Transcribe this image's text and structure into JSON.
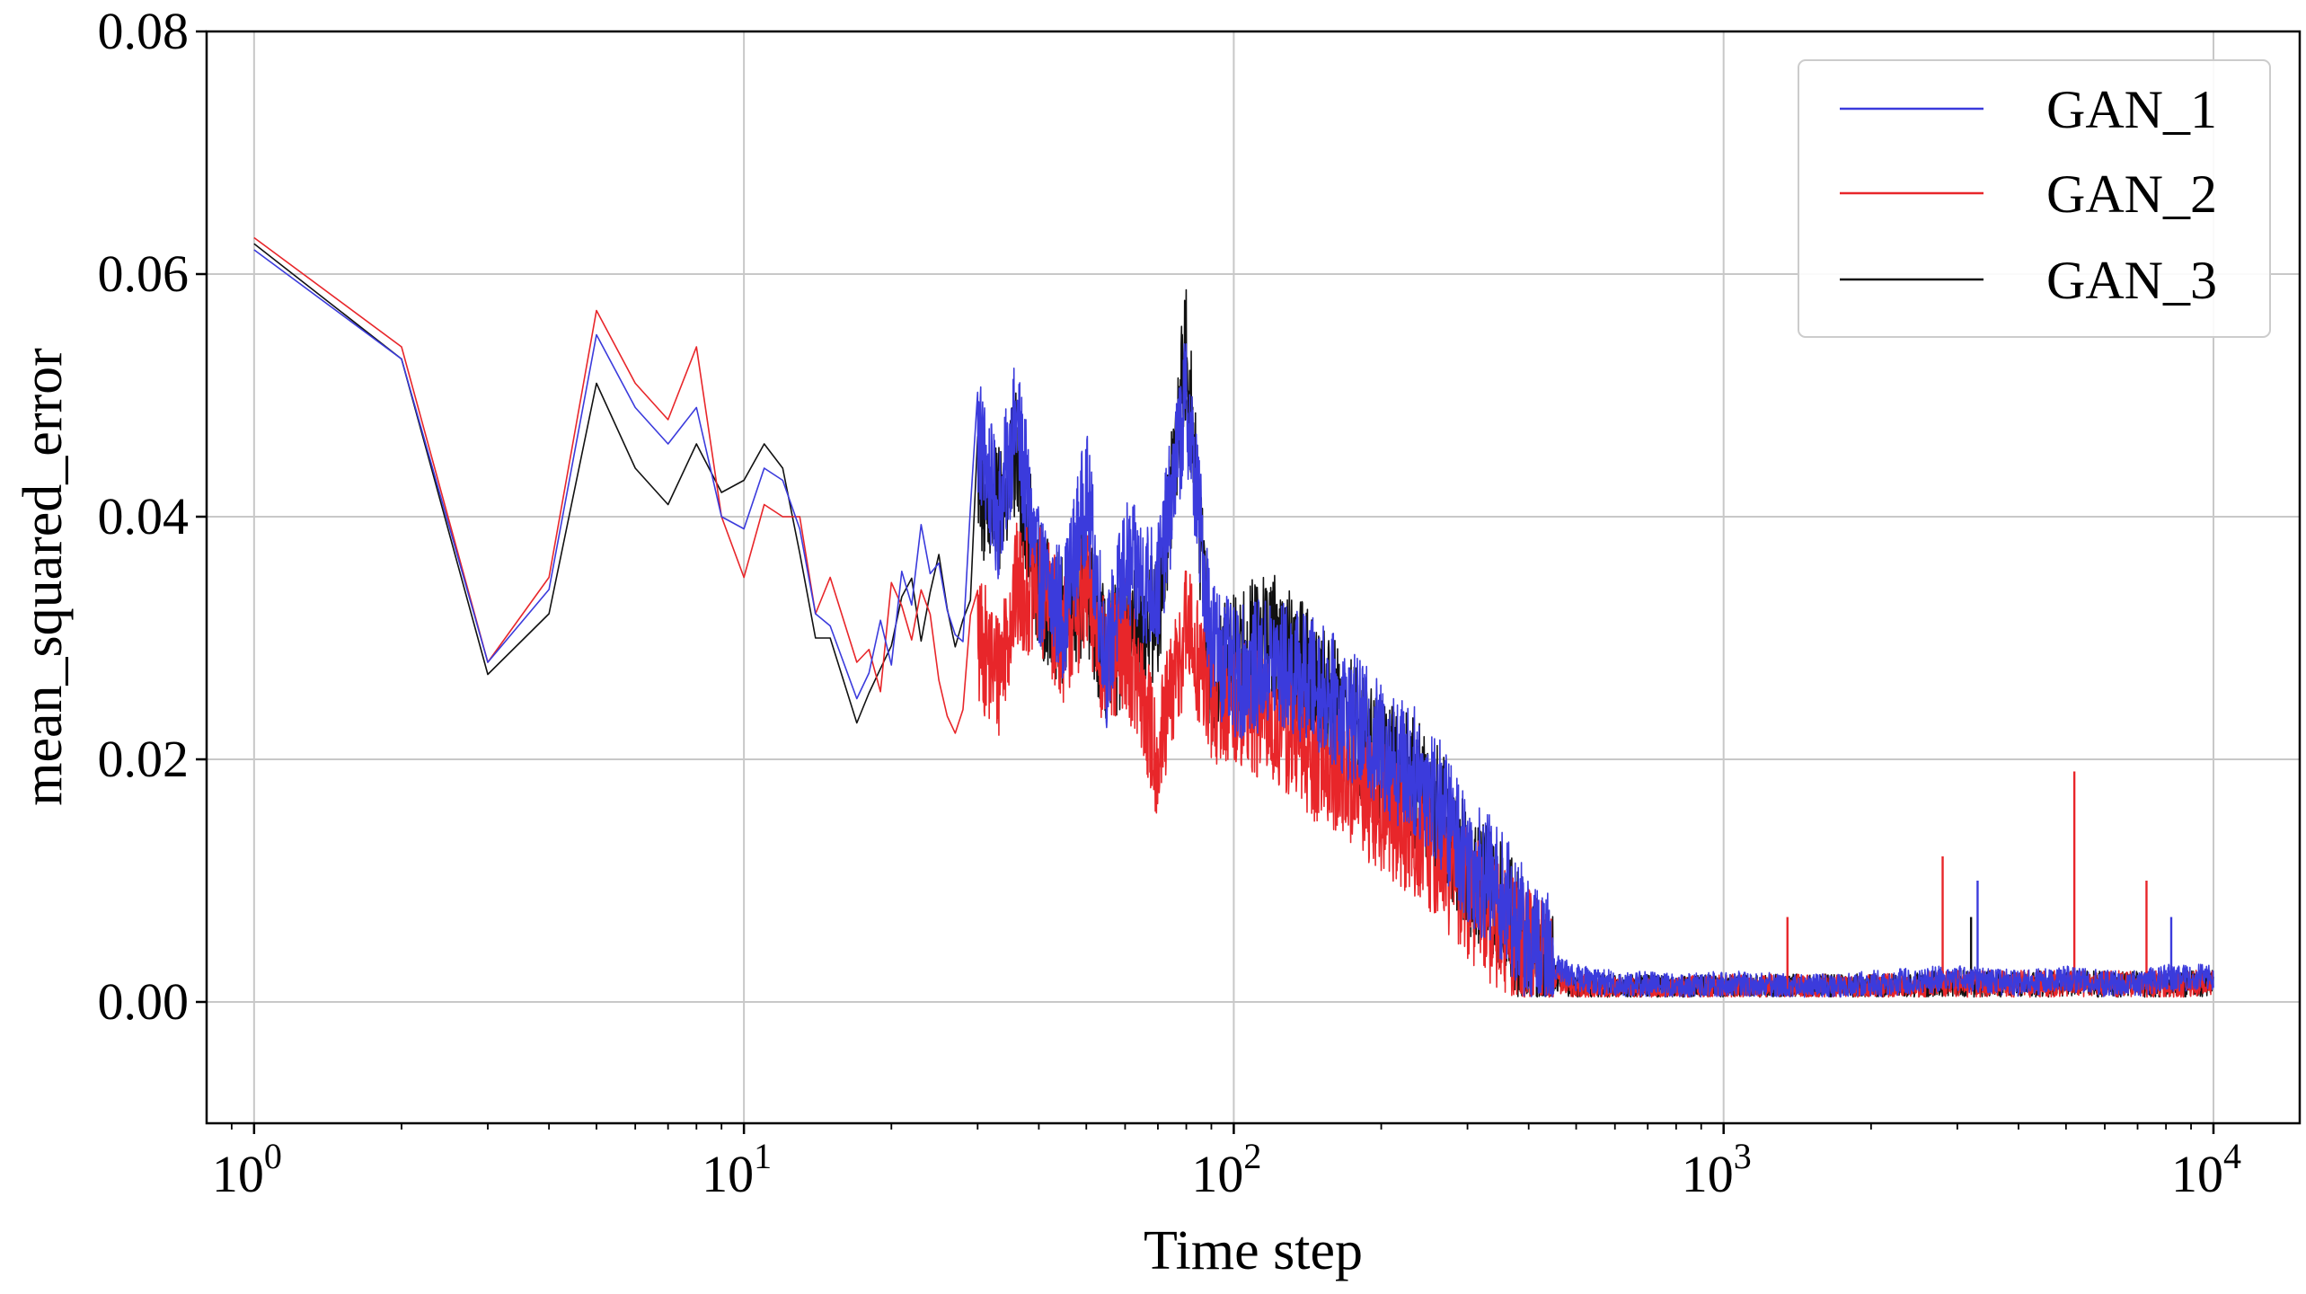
{
  "chart_data": {
    "type": "line",
    "xscale": "log",
    "xlabel": "Time step",
    "ylabel": "mean_squared_error",
    "xlim": [
      0.8,
      15000
    ],
    "ylim": [
      -0.01,
      0.08
    ],
    "grid": true,
    "legend_position": "top-right",
    "x_ticks": [
      {
        "value": 1,
        "base": "10",
        "exp": "0"
      },
      {
        "value": 10,
        "base": "10",
        "exp": "1"
      },
      {
        "value": 100,
        "base": "10",
        "exp": "2"
      },
      {
        "value": 1000,
        "base": "10",
        "exp": "3"
      },
      {
        "value": 10000,
        "base": "10",
        "exp": "4"
      }
    ],
    "y_ticks": [
      {
        "value": 0.0,
        "label": "0.00"
      },
      {
        "value": 0.02,
        "label": "0.02"
      },
      {
        "value": 0.04,
        "label": "0.04"
      },
      {
        "value": 0.06,
        "label": "0.06"
      },
      {
        "value": 0.08,
        "label": "0.08"
      }
    ],
    "series": [
      {
        "name": "GAN_1",
        "color": "#3b3bdc",
        "x": [
          1,
          2,
          3,
          4,
          5,
          6,
          7,
          8,
          9,
          10,
          11,
          12,
          13,
          14,
          15,
          17,
          20,
          25,
          28,
          30,
          33,
          36,
          40,
          45,
          50,
          55,
          60,
          70,
          80,
          90,
          100,
          120,
          150,
          200,
          250,
          300,
          350,
          400,
          450,
          500,
          600,
          700,
          800,
          1000,
          1500,
          2000,
          3000,
          4000,
          5000,
          6000,
          7000,
          8000,
          10000
        ],
        "values": [
          0.062,
          0.053,
          0.028,
          0.034,
          0.055,
          0.049,
          0.046,
          0.049,
          0.04,
          0.039,
          0.044,
          0.043,
          0.039,
          0.032,
          0.031,
          0.025,
          0.031,
          0.039,
          0.03,
          0.047,
          0.04,
          0.048,
          0.035,
          0.032,
          0.042,
          0.028,
          0.036,
          0.034,
          0.05,
          0.03,
          0.027,
          0.028,
          0.026,
          0.021,
          0.018,
          0.012,
          0.009,
          0.005,
          0.003,
          0.002,
          0.0015,
          0.0015,
          0.0012,
          0.0015,
          0.0012,
          0.0015,
          0.002,
          0.0015,
          0.002,
          0.0015,
          0.0015,
          0.002,
          0.002
        ],
        "spikes": [
          {
            "x": 3300,
            "y": 0.01
          },
          {
            "x": 8200,
            "y": 0.007
          }
        ]
      },
      {
        "name": "GAN_2",
        "color": "#e8262a",
        "x": [
          1,
          2,
          3,
          4,
          5,
          6,
          7,
          8,
          9,
          10,
          11,
          12,
          13,
          14,
          15,
          17,
          20,
          25,
          28,
          30,
          33,
          36,
          40,
          45,
          50,
          55,
          60,
          70,
          80,
          90,
          100,
          120,
          150,
          200,
          250,
          300,
          350,
          400,
          450,
          500,
          600,
          700,
          800,
          1000,
          1500,
          2000,
          3000,
          4000,
          5000,
          6000,
          7000,
          8000,
          10000
        ],
        "values": [
          0.063,
          0.054,
          0.028,
          0.035,
          0.057,
          0.051,
          0.048,
          0.054,
          0.04,
          0.035,
          0.041,
          0.04,
          0.04,
          0.032,
          0.035,
          0.028,
          0.031,
          0.028,
          0.023,
          0.03,
          0.027,
          0.034,
          0.034,
          0.03,
          0.034,
          0.027,
          0.03,
          0.02,
          0.031,
          0.025,
          0.025,
          0.023,
          0.02,
          0.016,
          0.013,
          0.009,
          0.006,
          0.004,
          0.002,
          0.0012,
          0.001,
          0.001,
          0.001,
          0.0012,
          0.0012,
          0.0012,
          0.0015,
          0.0015,
          0.0015,
          0.0015,
          0.0015,
          0.0015,
          0.0015
        ],
        "spikes": [
          {
            "x": 1350,
            "y": 0.007
          },
          {
            "x": 2800,
            "y": 0.012
          },
          {
            "x": 5200,
            "y": 0.019
          },
          {
            "x": 7300,
            "y": 0.01
          }
        ]
      },
      {
        "name": "GAN_3",
        "color": "#111111",
        "x": [
          1,
          2,
          3,
          4,
          5,
          6,
          7,
          8,
          9,
          10,
          11,
          12,
          13,
          14,
          15,
          17,
          20,
          25,
          28,
          30,
          33,
          36,
          40,
          45,
          50,
          55,
          60,
          70,
          80,
          90,
          100,
          120,
          150,
          200,
          250,
          300,
          350,
          400,
          450,
          500,
          600,
          700,
          800,
          1000,
          1500,
          2000,
          3000,
          4000,
          5000,
          6000,
          7000,
          8000,
          10000
        ],
        "values": [
          0.0625,
          0.053,
          0.027,
          0.032,
          0.051,
          0.044,
          0.041,
          0.046,
          0.042,
          0.043,
          0.046,
          0.044,
          0.037,
          0.03,
          0.03,
          0.023,
          0.03,
          0.037,
          0.029,
          0.042,
          0.04,
          0.045,
          0.034,
          0.031,
          0.034,
          0.028,
          0.03,
          0.032,
          0.054,
          0.025,
          0.029,
          0.03,
          0.026,
          0.02,
          0.017,
          0.011,
          0.008,
          0.004,
          0.002,
          0.0012,
          0.0012,
          0.0012,
          0.001,
          0.0012,
          0.0012,
          0.0012,
          0.0015,
          0.0015,
          0.0015,
          0.0015,
          0.0015,
          0.0015,
          0.0015
        ],
        "spikes": [
          {
            "x": 3200,
            "y": 0.007
          }
        ]
      }
    ]
  }
}
